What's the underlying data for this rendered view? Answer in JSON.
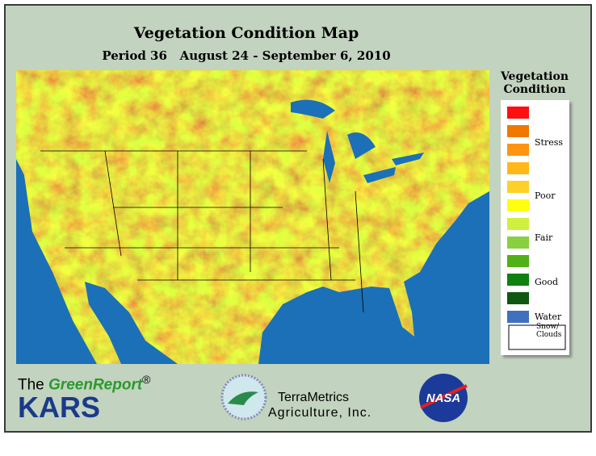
{
  "header": {
    "title": "Vegetation Condition Map",
    "subtitle": "Period 36   August 24 - September 6, 2010"
  },
  "legend": {
    "title": "Vegetation Condition",
    "swatches": [
      "#ff1010",
      "#f07800",
      "#ff9410",
      "#ffb818",
      "#ffd028",
      "#ffff10",
      "#d0f040",
      "#88d040",
      "#50b018",
      "#108010",
      "#105810",
      "#4070c0",
      "#ffffff"
    ],
    "labels": [
      "Stress",
      "Poor",
      "Fair",
      "Good",
      "Water",
      "Snow/ Clouds"
    ]
  },
  "logos": {
    "greenreport_prefix": "The",
    "greenreport": "GreenReport",
    "registered": "®",
    "kars": "KARS",
    "terrametrics": "TerraMetrics",
    "terrametrics_sub": "Agriculture, Inc.",
    "nasa": "NASA"
  }
}
